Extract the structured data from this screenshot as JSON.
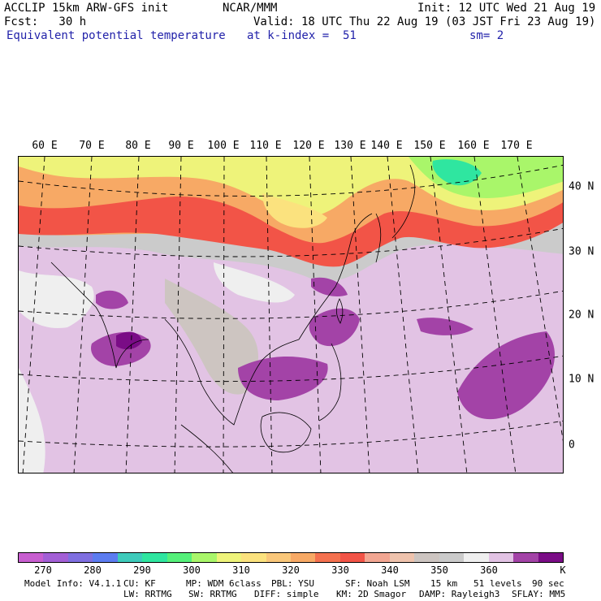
{
  "header": {
    "model": "ACCLIP 15km ARW-GFS init",
    "org": "NCAR/MMM",
    "init": "Init: 12 UTC Wed 21 Aug 19",
    "fcst": "Fcst:   30 h",
    "valid": "Valid: 18 UTC Thu 22 Aug 19 (03 JST Fri 23 Aug 19)",
    "field": "Equivalent potential temperature",
    "level": "at k-index =  51",
    "smooth": "sm= 2"
  },
  "map": {
    "lon_labels": [
      "60 E",
      "70 E",
      "80 E",
      "90 E",
      "100 E",
      "110 E",
      "120 E",
      "130 E",
      "140 E",
      "150 E",
      "160 E",
      "170 E"
    ],
    "lat_labels": [
      "40 N",
      "30 N",
      "20 N",
      "10 N",
      "0"
    ]
  },
  "colorbar": {
    "colors": [
      "#c85ed0",
      "#a35fd6",
      "#7f6fe0",
      "#5c7cf0",
      "#3ecbbb",
      "#2fe6a0",
      "#55f07a",
      "#a9f66a",
      "#eef37a",
      "#fbe27e",
      "#f9c77a",
      "#f7a965",
      "#f4714f",
      "#f25447",
      "#f2a692",
      "#efc3ad",
      "#cdc5c1",
      "#cbcbcb",
      "#efefef",
      "#e2c3e4",
      "#a343a7",
      "#7a0c86"
    ],
    "ticks": [
      "270",
      "280",
      "290",
      "300",
      "310",
      "320",
      "330",
      "340",
      "350",
      "360"
    ],
    "unit": "K"
  },
  "footer": {
    "line1": [
      "Model Info: V4.1.1",
      "CU: KF",
      "MP: WDM 6class",
      "PBL: YSU",
      "SF: Noah LSM",
      "15 km",
      "51 levels",
      "90 sec"
    ],
    "line2": [
      "LW: RRTMG",
      "SW: RRTMG",
      "DIFF: simple",
      "KM: 2D Smagor",
      "DAMP: Rayleigh3",
      "SFLAY: MM5"
    ]
  }
}
